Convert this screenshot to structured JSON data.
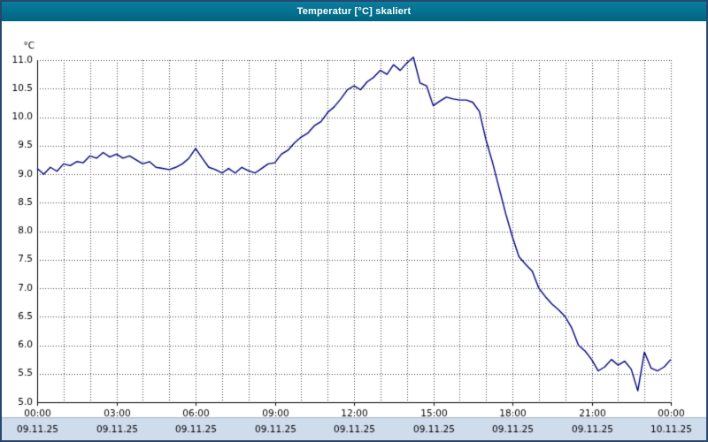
{
  "window": {
    "title": "Temperatur [°C] skaliert"
  },
  "chart_data": {
    "type": "line",
    "title": "Temperatur [°C] skaliert",
    "xlabel": "",
    "ylabel": "°C",
    "ylim": [
      5.0,
      11.0
    ],
    "y_tick_step": 0.5,
    "y_tick_labels": [
      "5.0",
      "5.5",
      "6.0",
      "6.5",
      "7.0",
      "7.5",
      "8.0",
      "8.5",
      "9.0",
      "9.5",
      "10.0",
      "10.5",
      "11.0"
    ],
    "xlim_hours": [
      0,
      24
    ],
    "x_minor_grid_step_hours": 1,
    "x_ticks": [
      {
        "hour": 0,
        "time": "00:00",
        "date": "09.11.25"
      },
      {
        "hour": 3,
        "time": "03:00",
        "date": "09.11.25"
      },
      {
        "hour": 6,
        "time": "06:00",
        "date": "09.11.25"
      },
      {
        "hour": 9,
        "time": "09:00",
        "date": "09.11.25"
      },
      {
        "hour": 12,
        "time": "12:00",
        "date": "09.11.25"
      },
      {
        "hour": 15,
        "time": "15:00",
        "date": "09.11.25"
      },
      {
        "hour": 18,
        "time": "18:00",
        "date": "09.11.25"
      },
      {
        "hour": 21,
        "time": "21:00",
        "date": "09.11.25"
      },
      {
        "hour": 24,
        "time": "00:00",
        "date": "10.11.25"
      }
    ],
    "grid": "dotted",
    "legend": "none",
    "colors": {
      "line": "#00007f",
      "grid": "#444444",
      "axis": "#000000",
      "plot_bg": "#ffffff",
      "date_strip_bg": "#cfdcec",
      "titlebar": "#006581"
    },
    "series": [
      {
        "name": "Temperatur",
        "color": "#00007f",
        "x_hours": [
          0,
          0.25,
          0.5,
          0.75,
          1,
          1.25,
          1.5,
          1.75,
          2,
          2.25,
          2.5,
          2.75,
          3,
          3.25,
          3.5,
          3.75,
          4,
          4.25,
          4.5,
          4.75,
          5,
          5.25,
          5.5,
          5.75,
          6,
          6.25,
          6.5,
          6.75,
          7,
          7.25,
          7.5,
          7.75,
          8,
          8.25,
          8.5,
          8.75,
          9,
          9.25,
          9.5,
          9.75,
          10,
          10.25,
          10.5,
          10.75,
          11,
          11.25,
          11.5,
          11.75,
          12,
          12.25,
          12.5,
          12.75,
          13,
          13.25,
          13.5,
          13.75,
          14,
          14.25,
          14.5,
          14.75,
          15,
          15.25,
          15.5,
          15.75,
          16,
          16.25,
          16.5,
          16.75,
          17,
          17.25,
          17.5,
          17.75,
          18,
          18.25,
          18.5,
          18.75,
          19,
          19.25,
          19.5,
          19.75,
          20,
          20.25,
          20.5,
          20.75,
          21,
          21.25,
          21.5,
          21.75,
          22,
          22.25,
          22.5,
          22.75,
          23,
          23.25,
          23.5,
          23.75,
          24
        ],
        "values": [
          9.1,
          9.0,
          9.12,
          9.05,
          9.18,
          9.15,
          9.22,
          9.2,
          9.32,
          9.28,
          9.38,
          9.3,
          9.35,
          9.28,
          9.32,
          9.25,
          9.18,
          9.22,
          9.12,
          9.1,
          9.08,
          9.12,
          9.18,
          9.28,
          9.45,
          9.28,
          9.12,
          9.08,
          9.02,
          9.1,
          9.02,
          9.12,
          9.06,
          9.02,
          9.1,
          9.18,
          9.2,
          9.35,
          9.42,
          9.55,
          9.65,
          9.72,
          9.85,
          9.92,
          10.08,
          10.18,
          10.32,
          10.48,
          10.55,
          10.48,
          10.62,
          10.7,
          10.82,
          10.75,
          10.92,
          10.82,
          10.95,
          11.05,
          10.6,
          10.55,
          10.2,
          10.28,
          10.35,
          10.32,
          10.3,
          10.3,
          10.26,
          10.1,
          9.6,
          9.2,
          8.75,
          8.3,
          7.9,
          7.55,
          7.42,
          7.3,
          7.0,
          6.85,
          6.72,
          6.62,
          6.5,
          6.3,
          6.0,
          5.9,
          5.75,
          5.55,
          5.62,
          5.75,
          5.65,
          5.72,
          5.58,
          5.2,
          5.88,
          5.6,
          5.55,
          5.62,
          5.75
        ]
      }
    ]
  }
}
